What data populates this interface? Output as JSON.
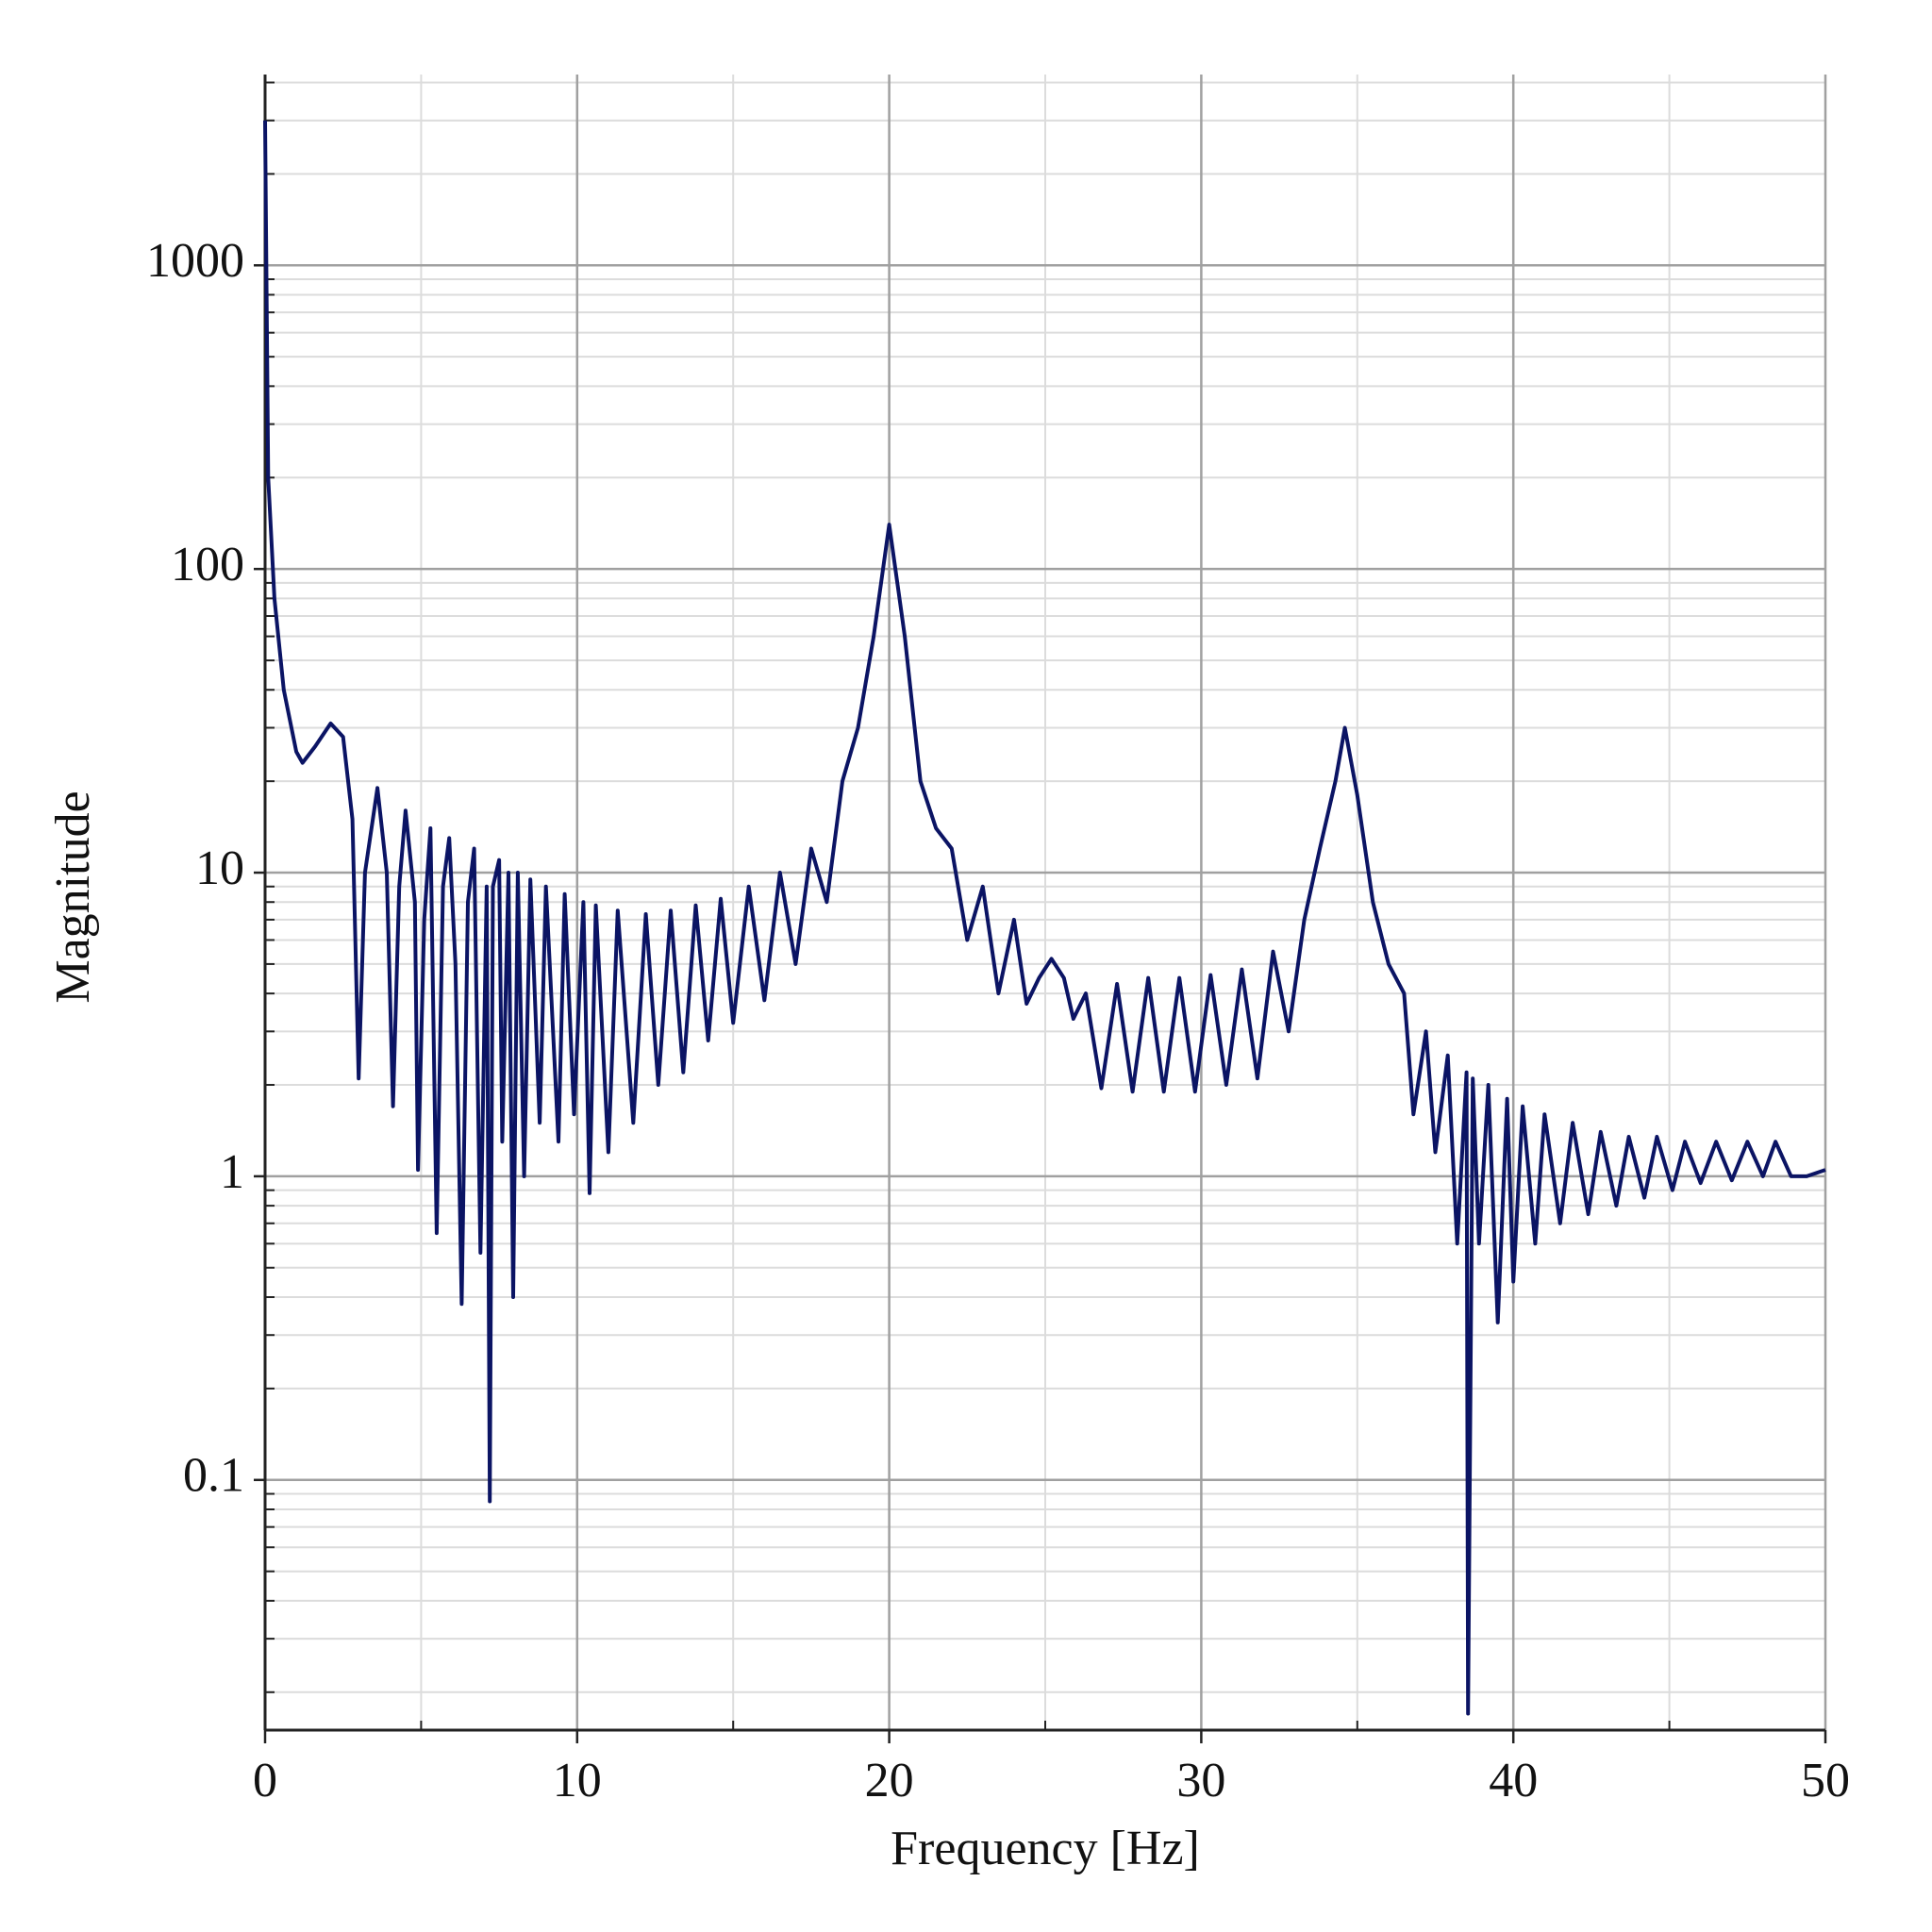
{
  "chart_data": {
    "type": "line",
    "xlabel": "Frequency [Hz]",
    "ylabel": "Magnitude",
    "xlim": [
      0,
      50
    ],
    "xticks": [
      0,
      10,
      20,
      30,
      40,
      50
    ],
    "ylim": [
      0.015,
      4250
    ],
    "yticks": [
      0.1,
      1,
      10,
      100,
      1000
    ],
    "ylog": true,
    "grid": true,
    "minor_grid": true,
    "series": [
      {
        "color": "#0b1464",
        "x": [
          0,
          0.1,
          0.3,
          0.6,
          1.0,
          1.2,
          1.6,
          2.1,
          2.5,
          2.8,
          3.0,
          3.2,
          3.6,
          3.9,
          4.1,
          4.3,
          4.5,
          4.8,
          4.9,
          5.1,
          5.3,
          5.5,
          5.7,
          5.9,
          6.1,
          6.3,
          6.5,
          6.7,
          6.9,
          7.1,
          7.2,
          7.3,
          7.5,
          7.6,
          7.8,
          7.95,
          8.1,
          8.3,
          8.5,
          8.8,
          9.0,
          9.4,
          9.6,
          9.9,
          10.2,
          10.4,
          10.6,
          11.0,
          11.3,
          11.8,
          12.2,
          12.6,
          13.0,
          13.4,
          13.8,
          14.2,
          14.6,
          15.0,
          15.5,
          16.0,
          16.5,
          17.0,
          17.5,
          18.0,
          18.5,
          19.0,
          19.5,
          20.0,
          20.5,
          21.0,
          21.5,
          22.0,
          22.5,
          23.0,
          23.5,
          24.0,
          24.4,
          24.8,
          25.2,
          25.6,
          25.9,
          26.3,
          26.8,
          27.3,
          27.8,
          28.3,
          28.8,
          29.3,
          29.8,
          30.3,
          30.8,
          31.3,
          31.8,
          32.3,
          32.8,
          33.3,
          33.8,
          34.3,
          34.6,
          35.0,
          35.5,
          36.0,
          36.5,
          36.8,
          37.2,
          37.5,
          37.9,
          38.2,
          38.5,
          38.55,
          38.7,
          38.9,
          39.2,
          39.5,
          39.8,
          40.0,
          40.3,
          40.7,
          41.0,
          41.5,
          41.9,
          42.4,
          42.8,
          43.3,
          43.7,
          44.2,
          44.6,
          45.1,
          45.5,
          46.0,
          46.5,
          47.0,
          47.5,
          48.0,
          48.4,
          48.9,
          49.4,
          50
        ],
        "values": [
          3000,
          200,
          80,
          40,
          25,
          23,
          26,
          31,
          28,
          15,
          2.1,
          10,
          19,
          10,
          1.7,
          9,
          16,
          8,
          1.05,
          7,
          14,
          0.65,
          9,
          13,
          5,
          0.38,
          8,
          12,
          0.56,
          9,
          0.085,
          9,
          11,
          1.3,
          10,
          0.4,
          10,
          1.0,
          9.5,
          1.5,
          9,
          1.3,
          8.5,
          1.6,
          8,
          0.88,
          7.8,
          1.2,
          7.5,
          1.5,
          7.3,
          2,
          7.5,
          2.2,
          7.8,
          2.8,
          8.2,
          3.2,
          9,
          3.8,
          10,
          5,
          12,
          8,
          20,
          30,
          60,
          140,
          60,
          20,
          14,
          12,
          6,
          9,
          4,
          7,
          3.7,
          4.5,
          5.2,
          4.5,
          3.3,
          4,
          1.95,
          4.3,
          1.9,
          4.5,
          1.9,
          4.5,
          1.9,
          4.6,
          2.0,
          4.8,
          2.1,
          5.5,
          3,
          7,
          12,
          20,
          30,
          18,
          8,
          5,
          4,
          1.6,
          3,
          1.2,
          2.5,
          0.6,
          2.2,
          0.017,
          2.1,
          0.6,
          2,
          0.33,
          1.8,
          0.45,
          1.7,
          0.6,
          1.6,
          0.7,
          1.5,
          0.75,
          1.4,
          0.8,
          1.35,
          0.85,
          1.35,
          0.9,
          1.3,
          0.95,
          1.3,
          0.97,
          1.3,
          1.0,
          1.3,
          1.0,
          1.0,
          1.05
        ]
      }
    ]
  }
}
